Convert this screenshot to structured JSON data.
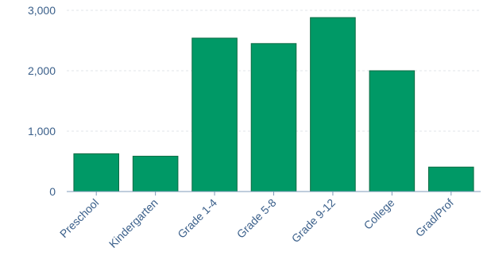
{
  "chart_data": {
    "type": "bar",
    "categories": [
      "Preschool",
      "Kindergarten",
      "Grade 1-4",
      "Grade 5-8",
      "Grade 9-12",
      "College",
      "Grad/Prof"
    ],
    "values": [
      625,
      585,
      2540,
      2450,
      2880,
      2000,
      405
    ],
    "title": "",
    "xlabel": "",
    "ylabel": "",
    "ylim": [
      0,
      3000
    ],
    "yticks": [
      0,
      1000,
      2000,
      3000
    ],
    "ytick_labels": [
      "0",
      "1,000",
      "2,000",
      "3,000"
    ],
    "grid": true,
    "legend": "none",
    "colors": {
      "bar": "#009966",
      "bar_edge": "#0b6b43",
      "tick_text": "#3a5f8a",
      "grid": "#e2e6ea",
      "axis": "#7f9bb8"
    }
  }
}
